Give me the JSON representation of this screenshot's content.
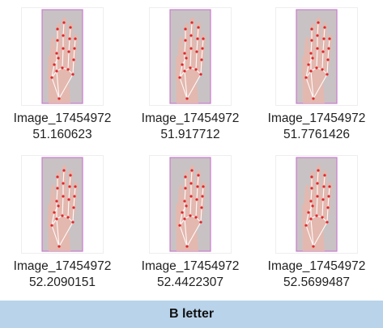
{
  "files": [
    {
      "name_line1": "Image_17454972",
      "name_line2": "51.160623",
      "thumbnail": "hand-landmark-image"
    },
    {
      "name_line1": "Image_17454972",
      "name_line2": "51.917712",
      "thumbnail": "hand-landmark-image"
    },
    {
      "name_line1": "Image_17454972",
      "name_line2": "51.7761426",
      "thumbnail": "hand-landmark-image"
    },
    {
      "name_line1": "Image_17454972",
      "name_line2": "52.2090151",
      "thumbnail": "hand-landmark-image"
    },
    {
      "name_line1": "Image_17454972",
      "name_line2": "52.4422307",
      "thumbnail": "hand-landmark-image"
    },
    {
      "name_line1": "Image_17454972",
      "name_line2": "52.5699487",
      "thumbnail": "hand-landmark-image"
    }
  ],
  "caption": "B letter",
  "colors": {
    "caption_bg": "#b9d3ea",
    "landmark_point": "#e0262b",
    "skeleton_line": "#ffffff",
    "thumbnail_border": "#c77ccf",
    "photo_bg": "#c9c2c4",
    "skin": "#e6b7ad"
  }
}
